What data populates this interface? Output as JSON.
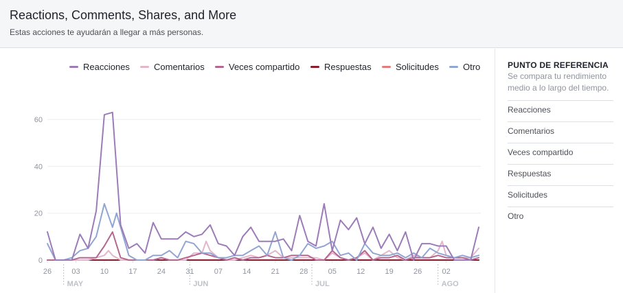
{
  "header": {
    "title": "Reactions, Comments, Shares, and More",
    "subtitle": "Estas acciones te ayudarán a llegar a más personas."
  },
  "legend": [
    {
      "label": "Reacciones",
      "color": "#9c7bb8"
    },
    {
      "label": "Comentarios",
      "color": "#e3b6c9"
    },
    {
      "label": "Veces compartido",
      "color": "#b5668f"
    },
    {
      "label": "Respuestas",
      "color": "#8a1c2e"
    },
    {
      "label": "Solicitudes",
      "color": "#e37c7c"
    },
    {
      "label": "Otro",
      "color": "#91a5d3"
    }
  ],
  "side_panel": {
    "title": "PUNTO DE REFERENCIA",
    "description": "Se compara tu rendimiento medio a lo largo del tiempo.",
    "items": [
      "Reacciones",
      "Comentarios",
      "Veces compartido",
      "Respuestas",
      "Solicitudes",
      "Otro"
    ]
  },
  "chart_data": {
    "type": "line",
    "ylim": [
      0,
      65
    ],
    "y_ticks": [
      0,
      20,
      40,
      60
    ],
    "x_ticks": [
      {
        "label": "26",
        "index": 0
      },
      {
        "label": "03",
        "index": 7
      },
      {
        "label": "10",
        "index": 14
      },
      {
        "label": "17",
        "index": 21
      },
      {
        "label": "24",
        "index": 28
      },
      {
        "label": "31",
        "index": 35
      },
      {
        "label": "07",
        "index": 42
      },
      {
        "label": "14",
        "index": 49
      },
      {
        "label": "21",
        "index": 56
      },
      {
        "label": "28",
        "index": 63
      },
      {
        "label": "05",
        "index": 70
      },
      {
        "label": "12",
        "index": 77
      },
      {
        "label": "19",
        "index": 84
      },
      {
        "label": "26",
        "index": 91
      },
      {
        "label": "02",
        "index": 98
      }
    ],
    "months": [
      {
        "label": "MAY",
        "index": 5
      },
      {
        "label": "JUN",
        "index": 36
      },
      {
        "label": "JUL",
        "index": 66
      },
      {
        "label": "AGO",
        "index": 97
      }
    ],
    "x_count": 106,
    "series": [
      {
        "name": "Solicitudes",
        "color": "#e37c7c",
        "points": [
          [
            0,
            0
          ],
          [
            106,
            0
          ]
        ]
      },
      {
        "name": "Respuestas",
        "color": "#8a1c2e",
        "points": [
          [
            0,
            0
          ],
          [
            106,
            0
          ]
        ]
      },
      {
        "name": "Comentarios",
        "color": "#e3b6c9",
        "points": [
          [
            0,
            0
          ],
          [
            2,
            0
          ],
          [
            4,
            0
          ],
          [
            6,
            0
          ],
          [
            8,
            0
          ],
          [
            10,
            0
          ],
          [
            12,
            1
          ],
          [
            14,
            2
          ],
          [
            15,
            4
          ],
          [
            16,
            2
          ],
          [
            18,
            0
          ],
          [
            20,
            0
          ],
          [
            22,
            0
          ],
          [
            24,
            0
          ],
          [
            26,
            0
          ],
          [
            28,
            1
          ],
          [
            30,
            0
          ],
          [
            32,
            0
          ],
          [
            34,
            0
          ],
          [
            36,
            3
          ],
          [
            38,
            3
          ],
          [
            39,
            8
          ],
          [
            40,
            4
          ],
          [
            42,
            1
          ],
          [
            44,
            0
          ],
          [
            46,
            0
          ],
          [
            48,
            1
          ],
          [
            50,
            2
          ],
          [
            52,
            1
          ],
          [
            54,
            2
          ],
          [
            56,
            4
          ],
          [
            58,
            1
          ],
          [
            60,
            1
          ],
          [
            62,
            1
          ],
          [
            64,
            1
          ],
          [
            66,
            1
          ],
          [
            68,
            0
          ],
          [
            70,
            3
          ],
          [
            72,
            1
          ],
          [
            74,
            0
          ],
          [
            76,
            1
          ],
          [
            78,
            3
          ],
          [
            80,
            0
          ],
          [
            82,
            2
          ],
          [
            84,
            4
          ],
          [
            86,
            1
          ],
          [
            88,
            0
          ],
          [
            90,
            2
          ],
          [
            92,
            1
          ],
          [
            94,
            1
          ],
          [
            96,
            4
          ],
          [
            97,
            8
          ],
          [
            98,
            2
          ],
          [
            100,
            1
          ],
          [
            102,
            1
          ],
          [
            104,
            1
          ],
          [
            106,
            5
          ]
        ]
      },
      {
        "name": "Veces compartido",
        "color": "#b5668f",
        "points": [
          [
            0,
            0
          ],
          [
            2,
            0
          ],
          [
            4,
            0
          ],
          [
            6,
            0
          ],
          [
            8,
            1
          ],
          [
            10,
            1
          ],
          [
            12,
            1
          ],
          [
            14,
            6
          ],
          [
            16,
            12
          ],
          [
            18,
            1
          ],
          [
            20,
            0
          ],
          [
            22,
            0
          ],
          [
            24,
            0
          ],
          [
            26,
            0
          ],
          [
            28,
            1
          ],
          [
            30,
            0
          ],
          [
            32,
            0
          ],
          [
            34,
            1
          ],
          [
            36,
            2
          ],
          [
            38,
            3
          ],
          [
            40,
            2
          ],
          [
            42,
            1
          ],
          [
            44,
            0
          ],
          [
            46,
            1
          ],
          [
            48,
            0
          ],
          [
            50,
            1
          ],
          [
            52,
            1
          ],
          [
            54,
            2
          ],
          [
            56,
            1
          ],
          [
            58,
            1
          ],
          [
            60,
            2
          ],
          [
            62,
            2
          ],
          [
            64,
            2
          ],
          [
            66,
            0
          ],
          [
            68,
            0
          ],
          [
            70,
            4
          ],
          [
            72,
            1
          ],
          [
            74,
            0
          ],
          [
            76,
            1
          ],
          [
            78,
            4
          ],
          [
            80,
            0
          ],
          [
            82,
            1
          ],
          [
            84,
            1
          ],
          [
            86,
            2
          ],
          [
            88,
            0
          ],
          [
            90,
            1
          ],
          [
            92,
            1
          ],
          [
            94,
            1
          ],
          [
            96,
            2
          ],
          [
            98,
            1
          ],
          [
            100,
            1
          ],
          [
            102,
            1
          ],
          [
            104,
            0
          ],
          [
            106,
            1
          ]
        ]
      },
      {
        "name": "Otro",
        "color": "#91a5d3",
        "points": [
          [
            0,
            7
          ],
          [
            2,
            0
          ],
          [
            4,
            0
          ],
          [
            6,
            1
          ],
          [
            8,
            4
          ],
          [
            10,
            5
          ],
          [
            12,
            10
          ],
          [
            14,
            24
          ],
          [
            16,
            14
          ],
          [
            17,
            20
          ],
          [
            18,
            14
          ],
          [
            20,
            2
          ],
          [
            22,
            0
          ],
          [
            24,
            0
          ],
          [
            26,
            2
          ],
          [
            28,
            2
          ],
          [
            30,
            4
          ],
          [
            32,
            1
          ],
          [
            34,
            8
          ],
          [
            36,
            7
          ],
          [
            38,
            3
          ],
          [
            40,
            3
          ],
          [
            42,
            1
          ],
          [
            44,
            1
          ],
          [
            46,
            2
          ],
          [
            48,
            2
          ],
          [
            50,
            4
          ],
          [
            52,
            6
          ],
          [
            54,
            2
          ],
          [
            56,
            12
          ],
          [
            58,
            1
          ],
          [
            60,
            0
          ],
          [
            62,
            2
          ],
          [
            64,
            7
          ],
          [
            66,
            5
          ],
          [
            68,
            6
          ],
          [
            70,
            8
          ],
          [
            72,
            2
          ],
          [
            74,
            3
          ],
          [
            76,
            0
          ],
          [
            78,
            7
          ],
          [
            80,
            3
          ],
          [
            82,
            2
          ],
          [
            84,
            2
          ],
          [
            86,
            3
          ],
          [
            88,
            1
          ],
          [
            90,
            3
          ],
          [
            92,
            1
          ],
          [
            94,
            5
          ],
          [
            96,
            3
          ],
          [
            98,
            2
          ],
          [
            100,
            1
          ],
          [
            102,
            2
          ],
          [
            104,
            1
          ],
          [
            106,
            2
          ]
        ]
      },
      {
        "name": "Reacciones",
        "color": "#9c7bb8",
        "points": [
          [
            0,
            12
          ],
          [
            2,
            0
          ],
          [
            4,
            0
          ],
          [
            6,
            0
          ],
          [
            8,
            11
          ],
          [
            10,
            5
          ],
          [
            12,
            21
          ],
          [
            14,
            62
          ],
          [
            16,
            63
          ],
          [
            18,
            15
          ],
          [
            20,
            5
          ],
          [
            22,
            7
          ],
          [
            24,
            3
          ],
          [
            26,
            16
          ],
          [
            28,
            9
          ],
          [
            30,
            9
          ],
          [
            32,
            9
          ],
          [
            34,
            12
          ],
          [
            36,
            10
          ],
          [
            38,
            11
          ],
          [
            40,
            15
          ],
          [
            42,
            7
          ],
          [
            44,
            6
          ],
          [
            46,
            2
          ],
          [
            48,
            10
          ],
          [
            50,
            14
          ],
          [
            52,
            8
          ],
          [
            54,
            8
          ],
          [
            56,
            8
          ],
          [
            58,
            9
          ],
          [
            60,
            4
          ],
          [
            62,
            19
          ],
          [
            64,
            8
          ],
          [
            66,
            6
          ],
          [
            68,
            24
          ],
          [
            70,
            4
          ],
          [
            72,
            17
          ],
          [
            74,
            13
          ],
          [
            76,
            18
          ],
          [
            78,
            7
          ],
          [
            80,
            14
          ],
          [
            82,
            5
          ],
          [
            84,
            11
          ],
          [
            86,
            4
          ],
          [
            88,
            12
          ],
          [
            90,
            0
          ],
          [
            92,
            7
          ],
          [
            94,
            7
          ],
          [
            96,
            6
          ],
          [
            98,
            6
          ],
          [
            100,
            0
          ],
          [
            102,
            0
          ],
          [
            104,
            0
          ],
          [
            106,
            14
          ]
        ]
      }
    ]
  }
}
